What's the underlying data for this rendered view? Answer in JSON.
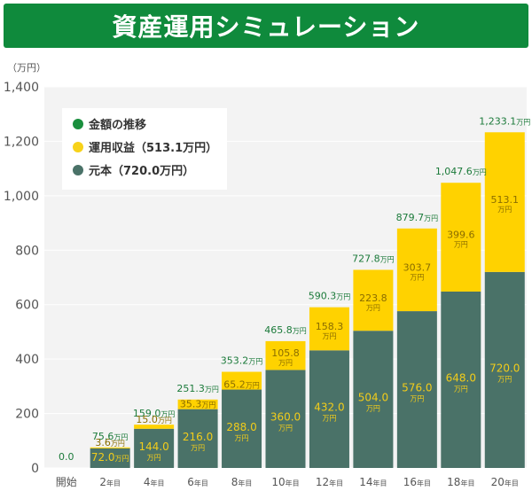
{
  "header": {
    "title": "資産運用シミュレーション"
  },
  "chart_data": {
    "type": "bar",
    "y_unit": "（万円）",
    "value_suffix": "万円",
    "ylim": [
      0,
      1400
    ],
    "yticks": [
      "0",
      "200",
      "400",
      "600",
      "800",
      "1,000",
      "1,200",
      "1,400"
    ],
    "ytick_values": [
      0,
      200,
      400,
      600,
      800,
      1000,
      1200,
      1400
    ],
    "categories": [
      {
        "num": "開始",
        "suffix": ""
      },
      {
        "num": "2",
        "suffix": "年目"
      },
      {
        "num": "4",
        "suffix": "年目"
      },
      {
        "num": "6",
        "suffix": "年目"
      },
      {
        "num": "8",
        "suffix": "年目"
      },
      {
        "num": "10",
        "suffix": "年目"
      },
      {
        "num": "12",
        "suffix": "年目"
      },
      {
        "num": "14",
        "suffix": "年目"
      },
      {
        "num": "16",
        "suffix": "年目"
      },
      {
        "num": "18",
        "suffix": "年目"
      },
      {
        "num": "20",
        "suffix": "年目"
      }
    ],
    "legend": [
      {
        "label": "金額の推移",
        "color": "#1a8f3e"
      },
      {
        "label": "運用収益（513.1万円）",
        "color": "#f7d21a"
      },
      {
        "label": "元本（720.0万円）",
        "color": "#4a7268"
      }
    ],
    "series": [
      {
        "name": "元本（720.0万円）",
        "color": "#4a7268",
        "values": [
          0,
          72.0,
          144.0,
          216.0,
          288.0,
          360.0,
          432.0,
          504.0,
          576.0,
          648.0,
          720.0
        ],
        "labels": [
          "",
          "72.0",
          "144.0",
          "216.0",
          "288.0",
          "360.0",
          "432.0",
          "504.0",
          "576.0",
          "648.0",
          "720.0"
        ]
      },
      {
        "name": "運用収益（513.1万円）",
        "color": "#ffd200",
        "values": [
          0,
          3.6,
          15.0,
          35.3,
          65.2,
          105.8,
          158.3,
          223.8,
          303.7,
          399.6,
          513.1
        ],
        "labels": [
          "",
          "3.6",
          "15.0",
          "35.3",
          "65.2",
          "105.8",
          "158.3",
          "223.8",
          "303.7",
          "399.6",
          "513.1"
        ]
      },
      {
        "name": "金額の推移",
        "color": "#1a8f3e",
        "values": [
          0.0,
          75.6,
          159.0,
          251.3,
          353.2,
          465.8,
          590.3,
          727.8,
          879.7,
          1047.6,
          1233.1
        ],
        "labels": [
          "0.0",
          "75.6",
          "159.0",
          "251.3",
          "353.2",
          "465.8",
          "590.3",
          "727.8",
          "879.7",
          "1,047.6",
          "1,233.1"
        ]
      }
    ]
  }
}
